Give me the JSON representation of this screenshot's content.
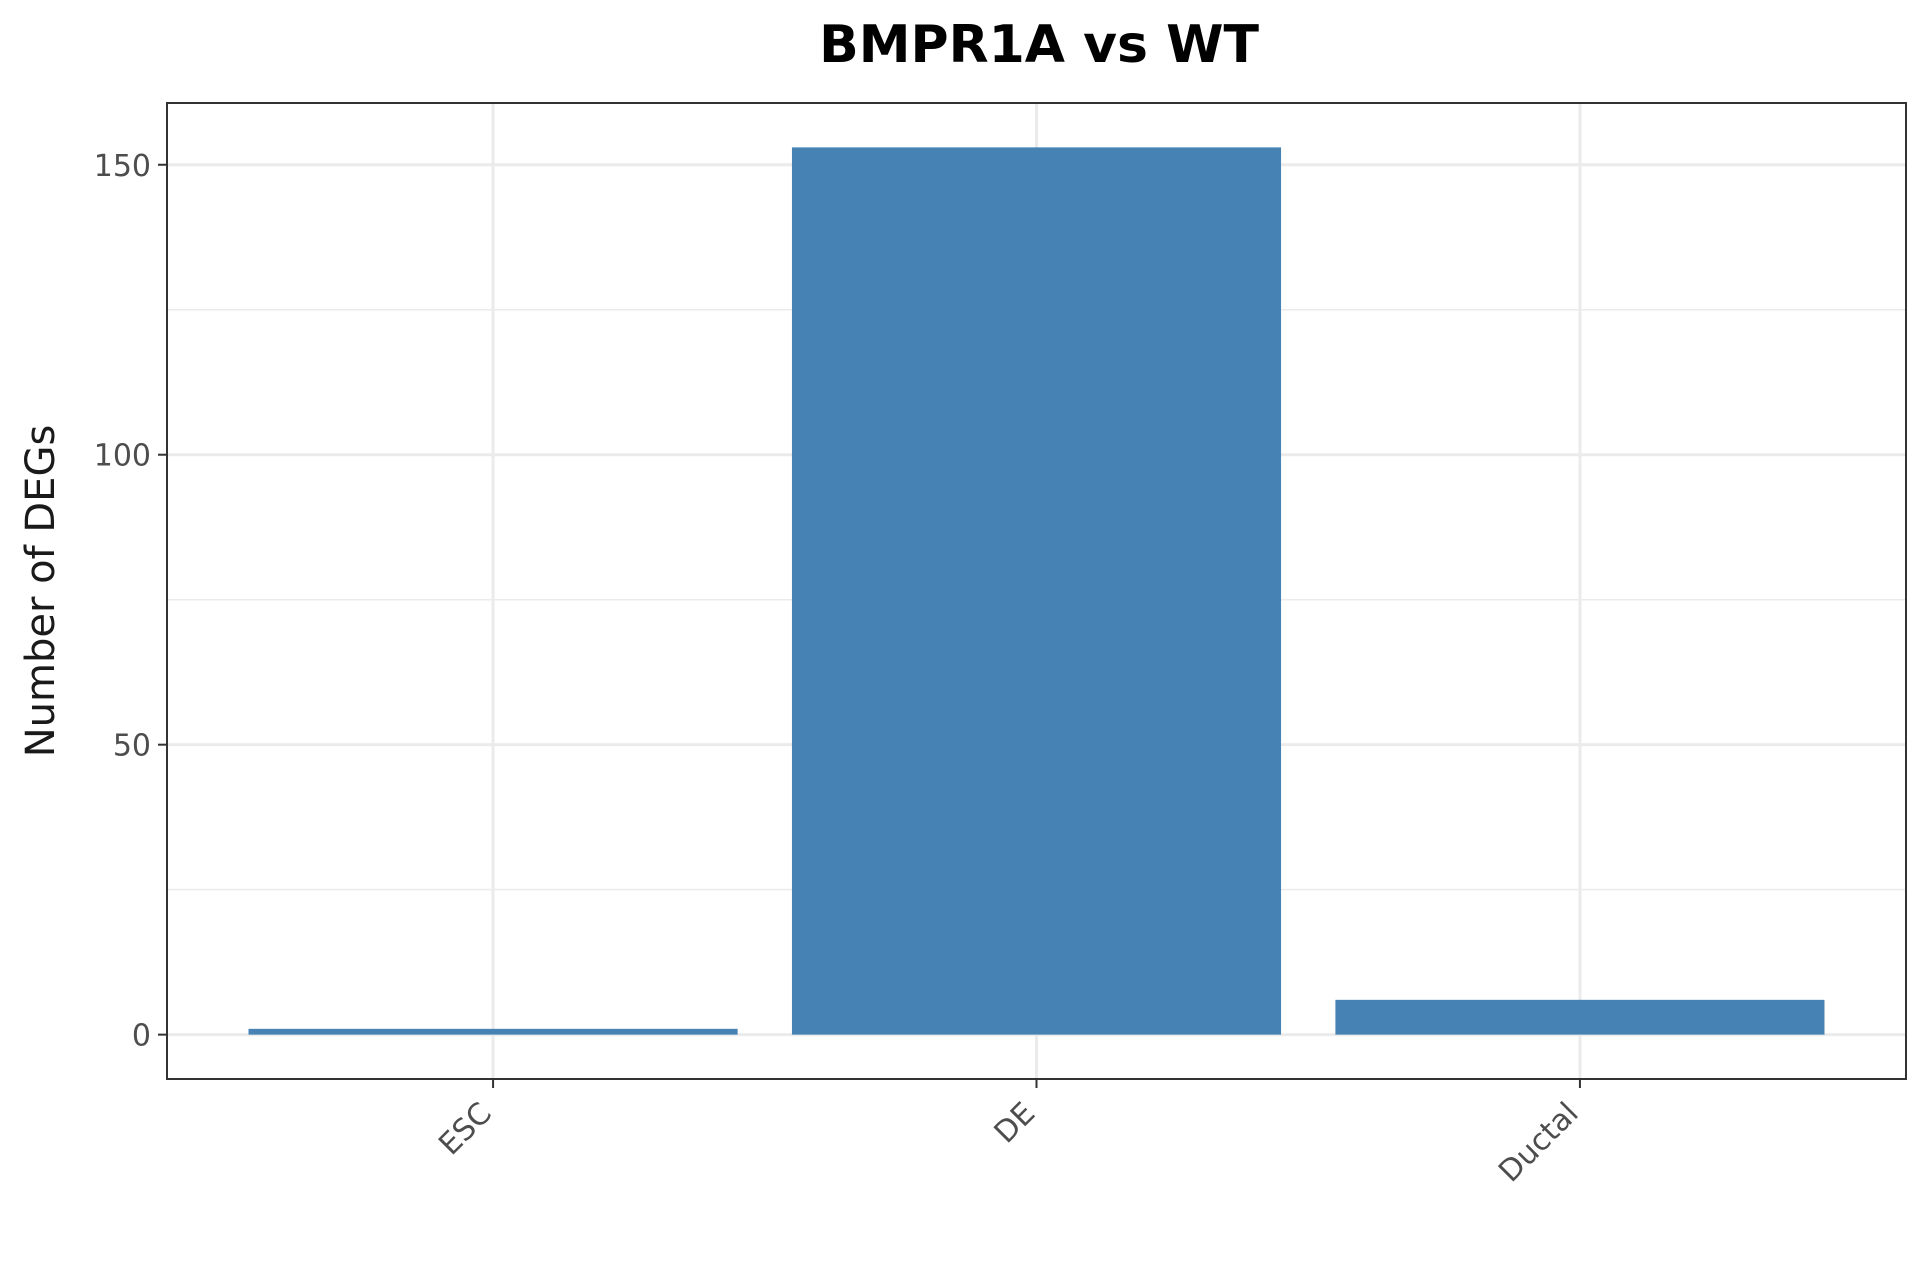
{
  "chart_data": {
    "type": "bar",
    "title": "BMPR1A vs WT",
    "xlabel": "",
    "ylabel": "Number of DEGs",
    "categories": [
      "ESC",
      "DE",
      "Ductal"
    ],
    "values": [
      1,
      153,
      6
    ],
    "ylim": [
      -7.65,
      160.65
    ],
    "yticks": [
      0,
      50,
      100,
      150
    ],
    "ytick_labels": [
      "0",
      "50",
      "100",
      "150"
    ],
    "x_tick_rotation": -45,
    "bar_color": "#4682B4",
    "grid": true,
    "legend": "none"
  }
}
